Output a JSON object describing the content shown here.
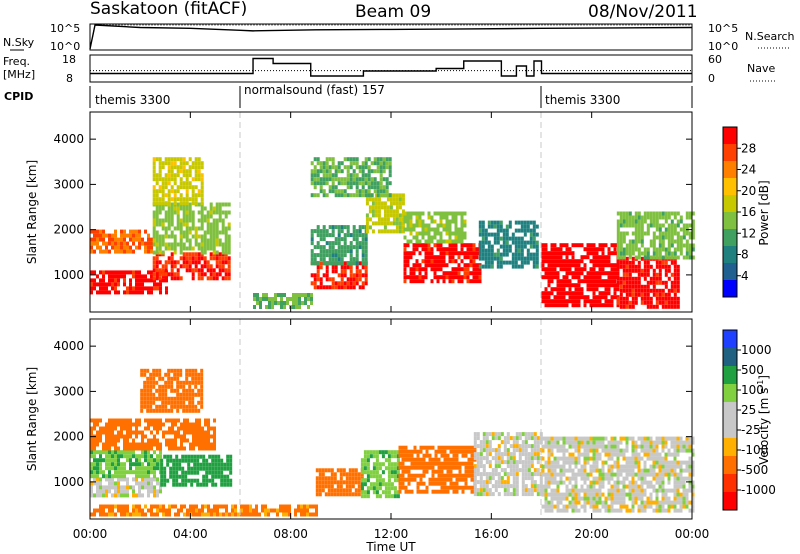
{
  "header": {
    "station": "Saskatoon (fitACF)",
    "beam": "Beam 09",
    "date": "08/Nov/2011"
  },
  "top_panels": {
    "nsky_label": "N.Sky",
    "nsky_ticks": [
      "10^5",
      "10^0"
    ],
    "nsearch_ticks": [
      "10^5",
      "10^0"
    ],
    "nsearch_label": "N.Search",
    "freq_label_line1": "Freq.",
    "freq_label_line2": "[MHz]",
    "freq_ticks": [
      "18",
      "8"
    ],
    "nave_ticks": [
      "60",
      "0"
    ],
    "nave_label": "Nave",
    "cpid_label": "CPID",
    "cpid_segments": [
      "themis 3300",
      "normalsound (fast) 157",
      "themis 3300"
    ]
  },
  "x_axis": {
    "label": "Time UT",
    "ticks": [
      "00:00",
      "04:00",
      "08:00",
      "12:00",
      "16:00",
      "20:00",
      "00:00"
    ]
  },
  "y_axis": {
    "label": "Slant Range [km]",
    "ticks": [
      "4000",
      "3000",
      "2000",
      "1000"
    ]
  },
  "power_bar": {
    "label": "Power [dB]",
    "ticks": [
      "28",
      "24",
      "20",
      "16",
      "12",
      "8",
      "4"
    ],
    "colors": [
      "#ff0000",
      "#ff4000",
      "#ff8000",
      "#ffc000",
      "#c8c800",
      "#80c040",
      "#40a060",
      "#208080",
      "#206090",
      "#0000ff"
    ]
  },
  "velocity_bar": {
    "label": "Velocity [m s",
    "label_sup": "-1",
    "label_end": "]",
    "ticks": [
      "1000",
      "500",
      "100",
      "25",
      "-25",
      "-100",
      "-500",
      "-1000"
    ],
    "colors": [
      "#2040ff",
      "#206080",
      "#20a040",
      "#80d040",
      "#c8c8c8",
      "#c8c8c8",
      "#ffb000",
      "#ff7000",
      "#ff3000",
      "#ff0000"
    ]
  },
  "chart_data": [
    {
      "type": "line",
      "title": "",
      "series": [
        {
          "name": "N.Sky",
          "x": [
            0,
            0.2,
            2,
            4,
            6,
            6.5,
            9,
            12,
            15,
            18,
            21,
            24
          ],
          "y": [
            1,
            100000,
            30000,
            20000,
            8000,
            6000,
            10000,
            12000,
            15000,
            20000,
            25000,
            30000
          ]
        },
        {
          "name": "N.Search",
          "x": [
            0,
            0.2,
            24
          ],
          "y": [
            1,
            100000,
            100000
          ]
        }
      ],
      "xlim": [
        0,
        24
      ],
      "ylim": [
        1,
        100000
      ],
      "yscale": "log"
    },
    {
      "type": "line",
      "title": "",
      "series": [
        {
          "name": "Freq.",
          "x": [
            0,
            6,
            6.5,
            7.3,
            8.8,
            10.9,
            13.8,
            14.9,
            16.4,
            17.0,
            17.4,
            17.7,
            18.0,
            24
          ],
          "y": [
            11,
            11,
            17,
            15,
            10,
            12,
            13,
            16,
            10,
            14,
            10,
            16,
            11,
            11
          ]
        },
        {
          "name": "Nave",
          "x": [
            0,
            24
          ],
          "y": [
            25,
            25
          ]
        }
      ],
      "xlim": [
        0,
        24
      ],
      "ylim_freq": [
        8,
        18
      ],
      "ylim_nave": [
        0,
        60
      ]
    },
    {
      "type": "table",
      "title": "CPID",
      "rows": [
        {
          "program": "themis 3300",
          "start_ut": "00:00",
          "end_ut": "06:00"
        },
        {
          "program": "normalsound (fast) 157",
          "start_ut": "06:00",
          "end_ut": "18:00"
        },
        {
          "program": "themis 3300",
          "start_ut": "18:00",
          "end_ut": "24:00"
        }
      ]
    },
    {
      "type": "heatmap",
      "title": "Power [dB]",
      "xlabel": "Time UT",
      "ylabel": "Slant Range [km]",
      "xlim": [
        0,
        24
      ],
      "ylim": [
        180,
        4600
      ],
      "color_range": [
        0,
        30
      ],
      "regions": [
        {
          "x0": 0,
          "x1": 3.0,
          "y0": 600,
          "y1": 1100,
          "value": 28
        },
        {
          "x0": 0,
          "x1": 2.5,
          "y0": 1500,
          "y1": 2000,
          "value": 24
        },
        {
          "x0": 2.5,
          "x1": 5.6,
          "y0": 900,
          "y1": 1500,
          "value": 27
        },
        {
          "x0": 2.5,
          "x1": 5.6,
          "y0": 1500,
          "y1": 2600,
          "value": 14
        },
        {
          "x0": 2.5,
          "x1": 4.5,
          "y0": 2600,
          "y1": 3600,
          "value": 17
        },
        {
          "x0": 6.5,
          "x1": 8.8,
          "y0": 300,
          "y1": 600,
          "value": 12
        },
        {
          "x0": 8.8,
          "x1": 11.0,
          "y0": 700,
          "y1": 1300,
          "value": 27
        },
        {
          "x0": 8.8,
          "x1": 11.0,
          "y0": 1300,
          "y1": 2100,
          "value": 10
        },
        {
          "x0": 11.0,
          "x1": 12.5,
          "y0": 2000,
          "y1": 2800,
          "value": 16
        },
        {
          "x0": 12.5,
          "x1": 15.5,
          "y0": 900,
          "y1": 1700,
          "value": 28
        },
        {
          "x0": 12.5,
          "x1": 15.0,
          "y0": 1700,
          "y1": 2400,
          "value": 14
        },
        {
          "x0": 15.5,
          "x1": 17.8,
          "y0": 1200,
          "y1": 2200,
          "value": 8
        },
        {
          "x0": 8.8,
          "x1": 12.0,
          "y0": 2800,
          "y1": 3600,
          "value": 12
        },
        {
          "x0": 18.0,
          "x1": 21.0,
          "y0": 300,
          "y1": 1700,
          "value": 29
        },
        {
          "x0": 21.0,
          "x1": 23.5,
          "y0": 300,
          "y1": 1400,
          "value": 28
        },
        {
          "x0": 21.0,
          "x1": 24.0,
          "y0": 1400,
          "y1": 2400,
          "value": 13
        }
      ]
    },
    {
      "type": "heatmap",
      "title": "Velocity [m s-1]",
      "xlabel": "Time UT",
      "ylabel": "Slant Range [km]",
      "xlim": [
        0,
        24
      ],
      "ylim": [
        180,
        4600
      ],
      "regions": [
        {
          "x0": 0,
          "x1": 2.8,
          "y0": 700,
          "y1": 1100,
          "value": 0
        },
        {
          "x0": 0,
          "x1": 2.8,
          "y0": 1100,
          "y1": 1700,
          "value": 80
        },
        {
          "x0": 2.8,
          "x1": 5.6,
          "y0": 900,
          "y1": 1600,
          "value": 150
        },
        {
          "x0": 0,
          "x1": 5.0,
          "y0": 1700,
          "y1": 2400,
          "value": -250
        },
        {
          "x0": 2.0,
          "x1": 4.5,
          "y0": 2600,
          "y1": 3500,
          "value": -200
        },
        {
          "x0": 9.0,
          "x1": 10.8,
          "y0": 700,
          "y1": 1300,
          "value": -150
        },
        {
          "x0": 10.8,
          "x1": 12.3,
          "y0": 700,
          "y1": 1700,
          "value": 80
        },
        {
          "x0": 12.3,
          "x1": 15.3,
          "y0": 800,
          "y1": 1800,
          "value": -200
        },
        {
          "x0": 15.3,
          "x1": 18.0,
          "y0": 700,
          "y1": 2100,
          "value": 0
        },
        {
          "x0": 18.0,
          "x1": 24.0,
          "y0": 400,
          "y1": 2000,
          "value": 0
        },
        {
          "x0": 0,
          "x1": 9.0,
          "y0": 300,
          "y1": 500,
          "value": -120
        }
      ]
    }
  ]
}
